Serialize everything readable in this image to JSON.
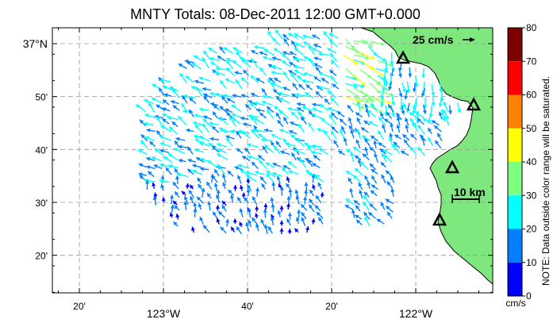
{
  "title": "MNTY Totals: 08-Dec-2011 12:00 GMT+0.000",
  "map": {
    "lon_range": [
      -123.333,
      -121.8
    ],
    "lat_range": [
      36.2,
      37.05
    ],
    "lat_labels": [
      {
        "lat": 37.0,
        "text": "37°N"
      },
      {
        "lat": 36.8333,
        "text": "50'"
      },
      {
        "lat": 36.6667,
        "text": "40'"
      },
      {
        "lat": 36.5,
        "text": "30'"
      },
      {
        "lat": 36.3333,
        "text": "20'"
      }
    ],
    "lon_labels": [
      {
        "lon": -123.3333,
        "text": "20'"
      },
      {
        "lon": -123.0,
        "text": "123°W"
      },
      {
        "lon": -122.6667,
        "text": "40'"
      },
      {
        "lon": -122.3333,
        "text": "20'"
      },
      {
        "lon": -122.0,
        "text": "122°W"
      }
    ],
    "land_color": "#7ee87e",
    "coast_color": "#000000",
    "grid": true,
    "scale_vector_label": "25 cm/s",
    "scale_bar_label": "10 km",
    "stations_count": 4
  },
  "colorbar": {
    "ticks": [
      "80",
      "70",
      "60",
      "50",
      "40",
      "30",
      "20",
      "10",
      "0"
    ],
    "colors": [
      "#7f0000",
      "#ff0000",
      "#ff7f00",
      "#ffff00",
      "#7fff7f",
      "#00ffff",
      "#007fff",
      "#0000ff"
    ],
    "unit": "cm/s",
    "note": "NOTE: Data outside color range will be saturated.",
    "range": [
      0,
      80
    ]
  }
}
